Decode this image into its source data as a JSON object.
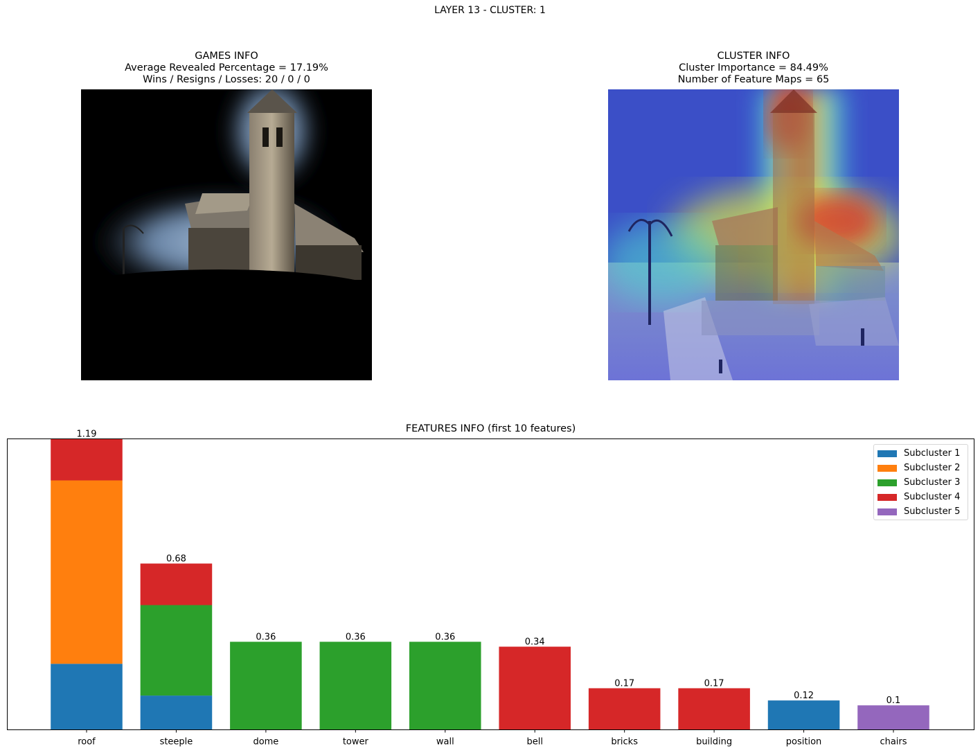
{
  "suptitle": "LAYER 13 - CLUSTER: 1",
  "games_info": {
    "title": "GAMES INFO",
    "line1": "Average Revealed Percentage = 17.19%",
    "line2": "Wins / Resigns / Losses: 20 / 0 / 0"
  },
  "cluster_info": {
    "title": "CLUSTER INFO",
    "line1": "Cluster Importance = 84.49%",
    "line2": "Number of Feature Maps = 65"
  },
  "colors": {
    "subcluster_1": "#1f77b4",
    "subcluster_2": "#ff7f0e",
    "subcluster_3": "#2ca02c",
    "subcluster_4": "#d62728",
    "subcluster_5": "#9467bd"
  },
  "chart_data": {
    "type": "bar",
    "stacked": true,
    "title": "FEATURES INFO (first 10 features)",
    "categories": [
      "roof",
      "steeple",
      "dome",
      "tower",
      "wall",
      "bell",
      "bricks",
      "building",
      "position",
      "chairs"
    ],
    "series": [
      {
        "name": "Subcluster 1",
        "color": "#1f77b4",
        "values": [
          0.27,
          0.14,
          0,
          0,
          0,
          0,
          0,
          0,
          0.12,
          0
        ]
      },
      {
        "name": "Subcluster 2",
        "color": "#ff7f0e",
        "values": [
          0.75,
          0,
          0,
          0,
          0,
          0,
          0,
          0,
          0,
          0
        ]
      },
      {
        "name": "Subcluster 3",
        "color": "#2ca02c",
        "values": [
          0,
          0.37,
          0.36,
          0.36,
          0.36,
          0,
          0,
          0,
          0,
          0
        ]
      },
      {
        "name": "Subcluster 4",
        "color": "#d62728",
        "values": [
          0.17,
          0.17,
          0,
          0,
          0,
          0.34,
          0.17,
          0.17,
          0,
          0
        ]
      },
      {
        "name": "Subcluster 5",
        "color": "#9467bd",
        "values": [
          0,
          0,
          0,
          0,
          0,
          0,
          0,
          0,
          0,
          0.1
        ]
      }
    ],
    "totals": [
      "1.19",
      "0.68",
      "0.36",
      "0.36",
      "0.36",
      "0.34",
      "0.17",
      "0.17",
      "0.12",
      "0.1"
    ],
    "ylim": [
      0,
      1.19
    ],
    "legend_position": "top-right",
    "y_ticks_shown": false,
    "grid": false
  }
}
